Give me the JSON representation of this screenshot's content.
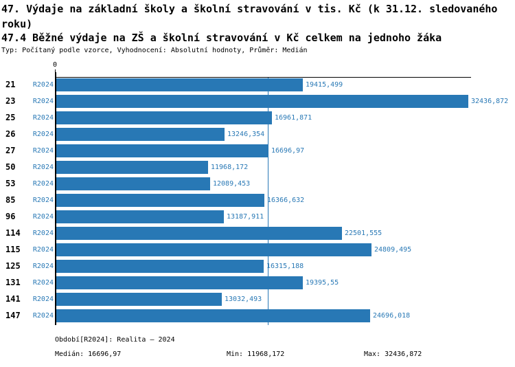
{
  "header": {
    "title": "47. Výdaje na základní školy a školní stravování v tis. Kč (k 31.12. sledovaného roku)",
    "subtitle": "47.4 Běžné výdaje na ZŠ a školní stravování v Kč celkem na jednoho žáka",
    "meta": "Typ: Počítaný podle vzorce, Vyhodnocení: Absolutní hodnoty, Průměr: Medián"
  },
  "chart_data": {
    "type": "bar",
    "orientation": "horizontal",
    "title": "47.4 Běžné výdaje na ZŠ a školní stravování v Kč celkem na jednoho žáka",
    "zero_label": "0",
    "period": "R2024",
    "categories": [
      "21",
      "23",
      "25",
      "26",
      "27",
      "50",
      "53",
      "85",
      "96",
      "114",
      "115",
      "125",
      "131",
      "141",
      "147"
    ],
    "values": [
      19415.499,
      32436.872,
      16961.871,
      13246.354,
      16696.97,
      11968.172,
      12089.453,
      16366.632,
      13187.911,
      22501.555,
      24809.495,
      16315.188,
      19395.55,
      13032.493,
      24696.018
    ],
    "value_labels": [
      "19415,499",
      "32436,872",
      "16961,871",
      "13246,354",
      "16696,97",
      "11968,172",
      "12089,453",
      "16366,632",
      "13187,911",
      "22501,555",
      "24809,495",
      "16315,188",
      "19395,55",
      "13032,493",
      "24696,018"
    ],
    "xlim": [
      0,
      32436.872
    ],
    "median": 16696.97,
    "grid": false,
    "legend_position": "none",
    "bar_color": "#2878b5",
    "median_line_color": "#2878b5",
    "label_color": "#2878b5",
    "axis_color": "#000000"
  },
  "footer": {
    "period_label": "Období[R2024]: Realita – 2024",
    "median_label": "Medián: 16696,97",
    "min_label": "Min: 11968,172",
    "max_label": "Max: 32436,872"
  }
}
